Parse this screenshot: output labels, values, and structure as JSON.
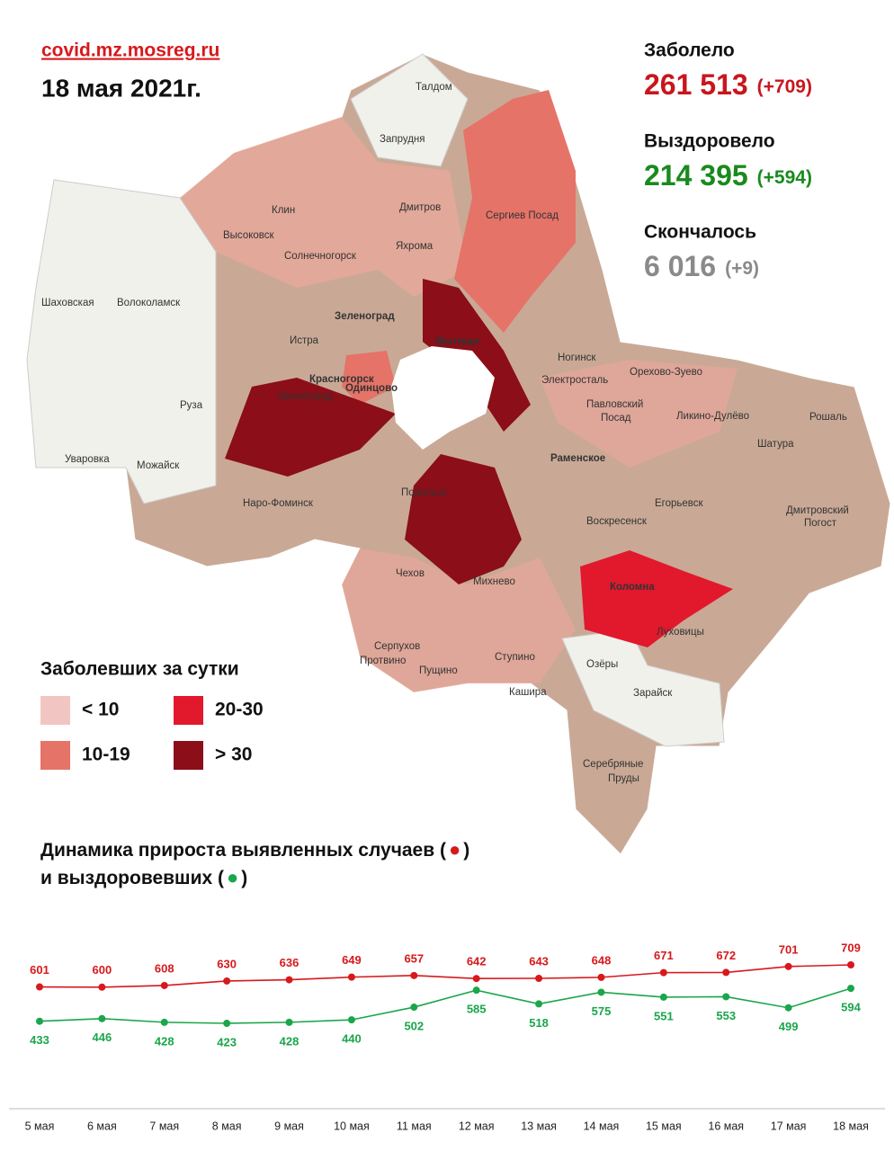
{
  "header": {
    "site": "covid.mz.mosreg.ru",
    "date": "18 мая 2021г."
  },
  "stats": [
    {
      "label": "Заболело",
      "value": "261 513",
      "delta": "(+709)"
    },
    {
      "label": "Выздоровело",
      "value": "214 395",
      "delta": "(+594)"
    },
    {
      "label": "Скончалось",
      "value": "6 016",
      "delta": "(+9)"
    }
  ],
  "legend": {
    "title": "Заболевших за сутки",
    "items": [
      "< 10",
      "10-19",
      "20-30",
      "> 30"
    ]
  },
  "map": {
    "towns": [
      "Талдом",
      "Запрудня",
      "Клин",
      "Дмитров",
      "Сергиев Посад",
      "Высоковск",
      "Яхрома",
      "Солнечногорск",
      "Шаховская",
      "Волоколамск",
      "Зеленоград",
      "Мытищи",
      "Истра",
      "Ногинск",
      "Орехово-Зуево",
      "Красногорск",
      "Электросталь",
      "Звенигород",
      "Одинцово",
      "Павловский",
      "Посад",
      "Ликино-Дулёво",
      "Рошаль",
      "Руза",
      "Шатура",
      "Раменское",
      "Уваровка",
      "Можайск",
      "Наро-Фоминск",
      "Подольск",
      "Егорьевск",
      "Дмитровский",
      "Погост",
      "Воскресенск",
      "Чехов",
      "Михнево",
      "Коломна",
      "Луховицы",
      "Серпухов",
      "Протвино",
      "Ступино",
      "Пущино",
      "Озёры",
      "Кашира",
      "Зарайск",
      "Серебряные",
      "Пруды"
    ]
  },
  "chart_data": {
    "type": "line",
    "title_parts": [
      "Динамика прироста выявленных случаев (",
      ")",
      "и выздоровевших (",
      ")"
    ],
    "categories": [
      "5 мая",
      "6 мая",
      "7 мая",
      "8 мая",
      "9 мая",
      "10 мая",
      "11 мая",
      "12 мая",
      "13 мая",
      "14 мая",
      "15 мая",
      "16 мая",
      "17 мая",
      "18 мая"
    ],
    "series": [
      {
        "color": "#d7191c",
        "values": [
          601,
          600,
          608,
          630,
          636,
          649,
          657,
          642,
          643,
          648,
          671,
          672,
          701,
          709
        ]
      },
      {
        "color": "#1aa64b",
        "values": [
          433,
          446,
          428,
          423,
          428,
          440,
          502,
          585,
          518,
          575,
          551,
          553,
          499,
          594
        ]
      }
    ]
  }
}
